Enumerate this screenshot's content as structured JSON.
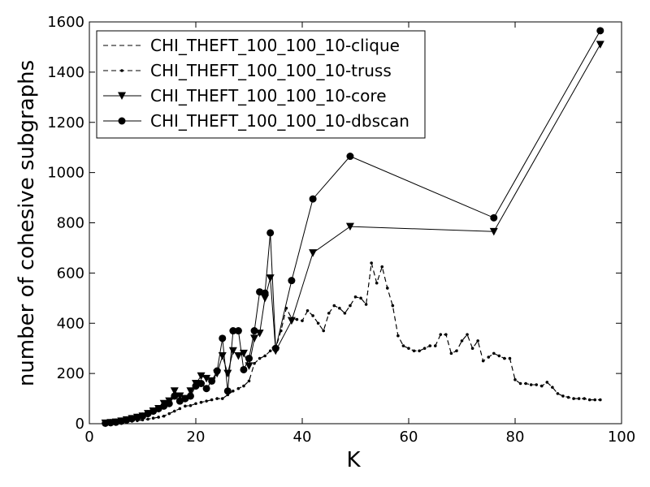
{
  "chart_data": {
    "type": "line",
    "xlabel": "K",
    "ylabel": "number of cohesive subgraphs",
    "xlim": [
      0,
      100
    ],
    "ylim": [
      0,
      1600
    ],
    "xticks": [
      "0",
      "20",
      "40",
      "60",
      "80",
      "100"
    ],
    "yticks": [
      "0",
      "200",
      "400",
      "600",
      "800",
      "1000",
      "1200",
      "1400",
      "1600"
    ],
    "legend_position": "top-left",
    "grid": false,
    "series": [
      {
        "name": "CHI_THEFT_100_100_10-clique",
        "style": "dashed",
        "marker": "none",
        "x": [
          3,
          4,
          5,
          6,
          7,
          8,
          9,
          10,
          11,
          12,
          13,
          14,
          15,
          16,
          17,
          18,
          19,
          20,
          21,
          22,
          23,
          24,
          25,
          26,
          27,
          28,
          29,
          30,
          31,
          32,
          33,
          34,
          35,
          36,
          37,
          38,
          39,
          40,
          41,
          42,
          43,
          44,
          45,
          46,
          47,
          48,
          49,
          50,
          51,
          52,
          53,
          54,
          55,
          56,
          57,
          58,
          59,
          60,
          61,
          62,
          63,
          64,
          65,
          66,
          67,
          68,
          69,
          70,
          71,
          72,
          73,
          74,
          75,
          76,
          77,
          78,
          79,
          80,
          81,
          82,
          83,
          84,
          85,
          86,
          87,
          88,
          89,
          90,
          91,
          92,
          93,
          94,
          95,
          96
        ],
        "y": [
          2,
          3,
          4,
          6,
          8,
          10,
          12,
          15,
          18,
          22,
          26,
          30,
          40,
          50,
          60,
          70,
          72,
          80,
          85,
          90,
          95,
          100,
          100,
          115,
          130,
          140,
          150,
          170,
          240,
          260,
          270,
          290,
          300,
          370,
          460,
          420,
          415,
          410,
          450,
          430,
          400,
          370,
          440,
          470,
          460,
          440,
          470,
          505,
          500,
          475,
          640,
          560,
          625,
          540,
          470,
          350,
          310,
          300,
          290,
          290,
          300,
          310,
          310,
          355,
          355,
          280,
          290,
          330,
          355,
          300,
          330,
          250,
          265,
          280,
          270,
          260,
          260,
          175,
          160,
          160,
          155,
          155,
          150,
          165,
          145,
          120,
          110,
          105,
          100,
          100,
          100,
          95,
          95,
          95
        ]
      },
      {
        "name": "CHI_THEFT_100_100_10-truss",
        "style": "dashed",
        "marker": "point",
        "x": [
          3,
          4,
          5,
          6,
          7,
          8,
          9,
          10,
          11,
          12,
          13,
          14,
          15,
          16,
          17,
          18,
          19,
          20,
          21,
          22,
          23,
          24,
          25,
          26,
          27,
          28,
          29,
          30,
          31,
          32,
          33,
          34,
          35,
          36,
          37,
          38,
          39,
          40,
          41,
          42,
          43,
          44,
          45,
          46,
          47,
          48,
          49,
          50,
          51,
          52,
          53,
          54,
          55,
          56,
          57,
          58,
          59,
          60,
          61,
          62,
          63,
          64,
          65,
          66,
          67,
          68,
          69,
          70,
          71,
          72,
          73,
          74,
          75,
          76,
          77,
          78,
          79,
          80,
          81,
          82,
          83,
          84,
          85,
          86,
          87,
          88,
          89,
          90,
          91,
          92,
          93,
          94,
          95,
          96
        ],
        "y": [
          2,
          3,
          4,
          6,
          8,
          10,
          12,
          15,
          18,
          22,
          26,
          30,
          40,
          50,
          60,
          70,
          72,
          80,
          85,
          90,
          95,
          100,
          100,
          115,
          130,
          140,
          150,
          170,
          240,
          260,
          270,
          290,
          300,
          370,
          460,
          420,
          415,
          410,
          450,
          430,
          400,
          370,
          440,
          470,
          460,
          440,
          470,
          505,
          500,
          475,
          640,
          560,
          625,
          540,
          470,
          350,
          310,
          300,
          290,
          290,
          300,
          310,
          310,
          355,
          355,
          280,
          290,
          330,
          355,
          300,
          330,
          250,
          265,
          280,
          270,
          260,
          260,
          175,
          160,
          160,
          155,
          155,
          150,
          165,
          145,
          120,
          110,
          105,
          100,
          100,
          100,
          95,
          95,
          95
        ]
      },
      {
        "name": "CHI_THEFT_100_100_10-core",
        "style": "solid",
        "marker": "triangle-down",
        "x": [
          3,
          4,
          5,
          6,
          7,
          8,
          9,
          10,
          11,
          12,
          13,
          14,
          15,
          16,
          17,
          18,
          19,
          20,
          21,
          22,
          23,
          24,
          25,
          26,
          27,
          28,
          29,
          30,
          31,
          32,
          33,
          34,
          35,
          38,
          42,
          49,
          76,
          96
        ],
        "y": [
          2,
          4,
          6,
          10,
          15,
          20,
          25,
          30,
          40,
          50,
          60,
          80,
          90,
          130,
          110,
          100,
          130,
          160,
          190,
          180,
          170,
          200,
          270,
          200,
          290,
          270,
          280,
          230,
          340,
          360,
          500,
          580,
          290,
          410,
          680,
          785,
          765,
          1510
        ]
      },
      {
        "name": "CHI_THEFT_100_100_10-dbscan",
        "style": "solid",
        "marker": "circle",
        "x": [
          3,
          4,
          5,
          6,
          7,
          8,
          9,
          10,
          11,
          12,
          13,
          14,
          15,
          16,
          17,
          18,
          19,
          20,
          21,
          22,
          23,
          24,
          25,
          26,
          27,
          28,
          29,
          30,
          31,
          32,
          33,
          34,
          35,
          38,
          42,
          49,
          76,
          96
        ],
        "y": [
          2,
          4,
          6,
          10,
          15,
          20,
          25,
          30,
          40,
          50,
          60,
          70,
          80,
          110,
          90,
          100,
          110,
          150,
          160,
          140,
          170,
          210,
          340,
          130,
          370,
          370,
          215,
          260,
          370,
          525,
          520,
          760,
          300,
          570,
          895,
          1065,
          820,
          1565
        ]
      }
    ]
  }
}
